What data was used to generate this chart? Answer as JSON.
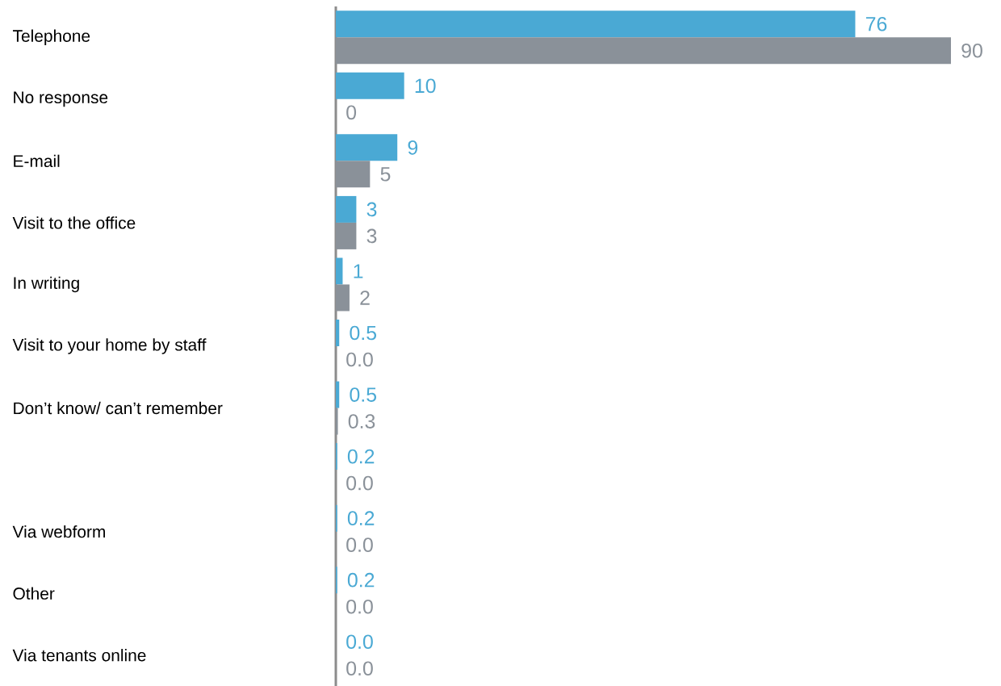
{
  "chart_data": {
    "type": "bar",
    "orientation": "horizontal",
    "tick_labels": "y",
    "categories": [
      "Telephone",
      "No response",
      "E-mail",
      "Visit to the office",
      "In writing",
      "Visit to your home by staff",
      "Don’t know/ can’t remember",
      null,
      "Via webform",
      "Other",
      "Via tenants online"
    ],
    "series": [
      {
        "color": "#4aa9d4",
        "values": [
          76,
          10,
          9,
          3,
          1,
          0.5,
          0.5,
          0.2,
          0.2,
          0.2,
          0.0
        ],
        "value_labels": [
          "76",
          "10",
          "9",
          "3",
          "1",
          "0.5",
          "0.5",
          "0.2",
          "0.2",
          "0.2",
          "0.0"
        ]
      },
      {
        "color": "#8a9199",
        "values": [
          90,
          0,
          5,
          3,
          2,
          0.0,
          0.3,
          0.0,
          0.0,
          0.0,
          0.0
        ],
        "value_labels": [
          "90",
          "0",
          "5",
          "3",
          "2",
          "0.0",
          "0.3",
          "0.0",
          "0.0",
          "0.0",
          "0.0"
        ]
      }
    ]
  }
}
